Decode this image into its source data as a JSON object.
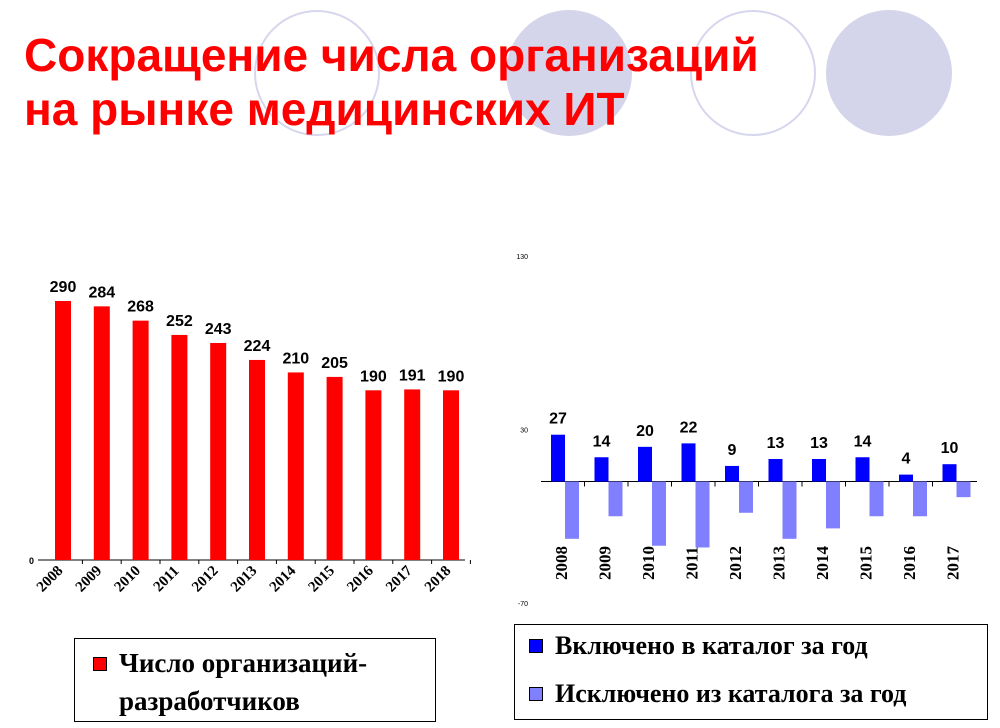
{
  "title": {
    "line1": "Сокращение числа организаций",
    "line2": "на рынке медицинских ИТ"
  },
  "colors": {
    "title": "#ff0000",
    "bar_red": "#ff0000",
    "bar_blue": "#0000ff",
    "bar_lightblue": "#8080ff",
    "circles": "#d4d4ea"
  },
  "chart_data": [
    {
      "type": "bar",
      "title": "",
      "categories": [
        "2008",
        "2009",
        "2010",
        "2011",
        "2012",
        "2013",
        "2014",
        "2015",
        "2016",
        "2017",
        "2018"
      ],
      "series": [
        {
          "name": "Число организаций-разработчиков",
          "values": [
            290,
            284,
            268,
            252,
            243,
            224,
            210,
            205,
            190,
            191,
            190
          ],
          "color": "#ff0000"
        }
      ],
      "ylim": [
        0,
        290
      ],
      "y_tick_labels": [
        "0"
      ],
      "data_labels": [
        "290",
        "284",
        "268",
        "252",
        "243",
        "224",
        "210",
        "205",
        "190",
        "191",
        "190"
      ],
      "legend": {
        "position": "bottom",
        "line1": "Число организаций-",
        "line2": "разработчиков"
      },
      "grid": false
    },
    {
      "type": "bar",
      "title": "",
      "categories": [
        "2008",
        "2009",
        "2010",
        "2011",
        "2012",
        "2013",
        "2014",
        "2015",
        "2016",
        "2017"
      ],
      "series": [
        {
          "name": "Включено в каталог за год",
          "values": [
            27,
            14,
            20,
            22,
            9,
            13,
            13,
            14,
            4,
            10
          ],
          "color": "#0000ff"
        },
        {
          "name": "Исключено из каталога за год",
          "values": [
            -33,
            -20,
            -37,
            -38,
            -18,
            -33,
            -27,
            -20,
            -20,
            -9
          ],
          "color": "#8080ff"
        }
      ],
      "ylim": [
        -70,
        130
      ],
      "y_tick_labels": [
        "130",
        "30",
        "-70"
      ],
      "data_labels": [
        "27",
        "14",
        "20",
        "22",
        "9",
        "13",
        "13",
        "14",
        "4",
        "10"
      ],
      "legend": {
        "position": "bottom"
      },
      "grid": false
    }
  ]
}
